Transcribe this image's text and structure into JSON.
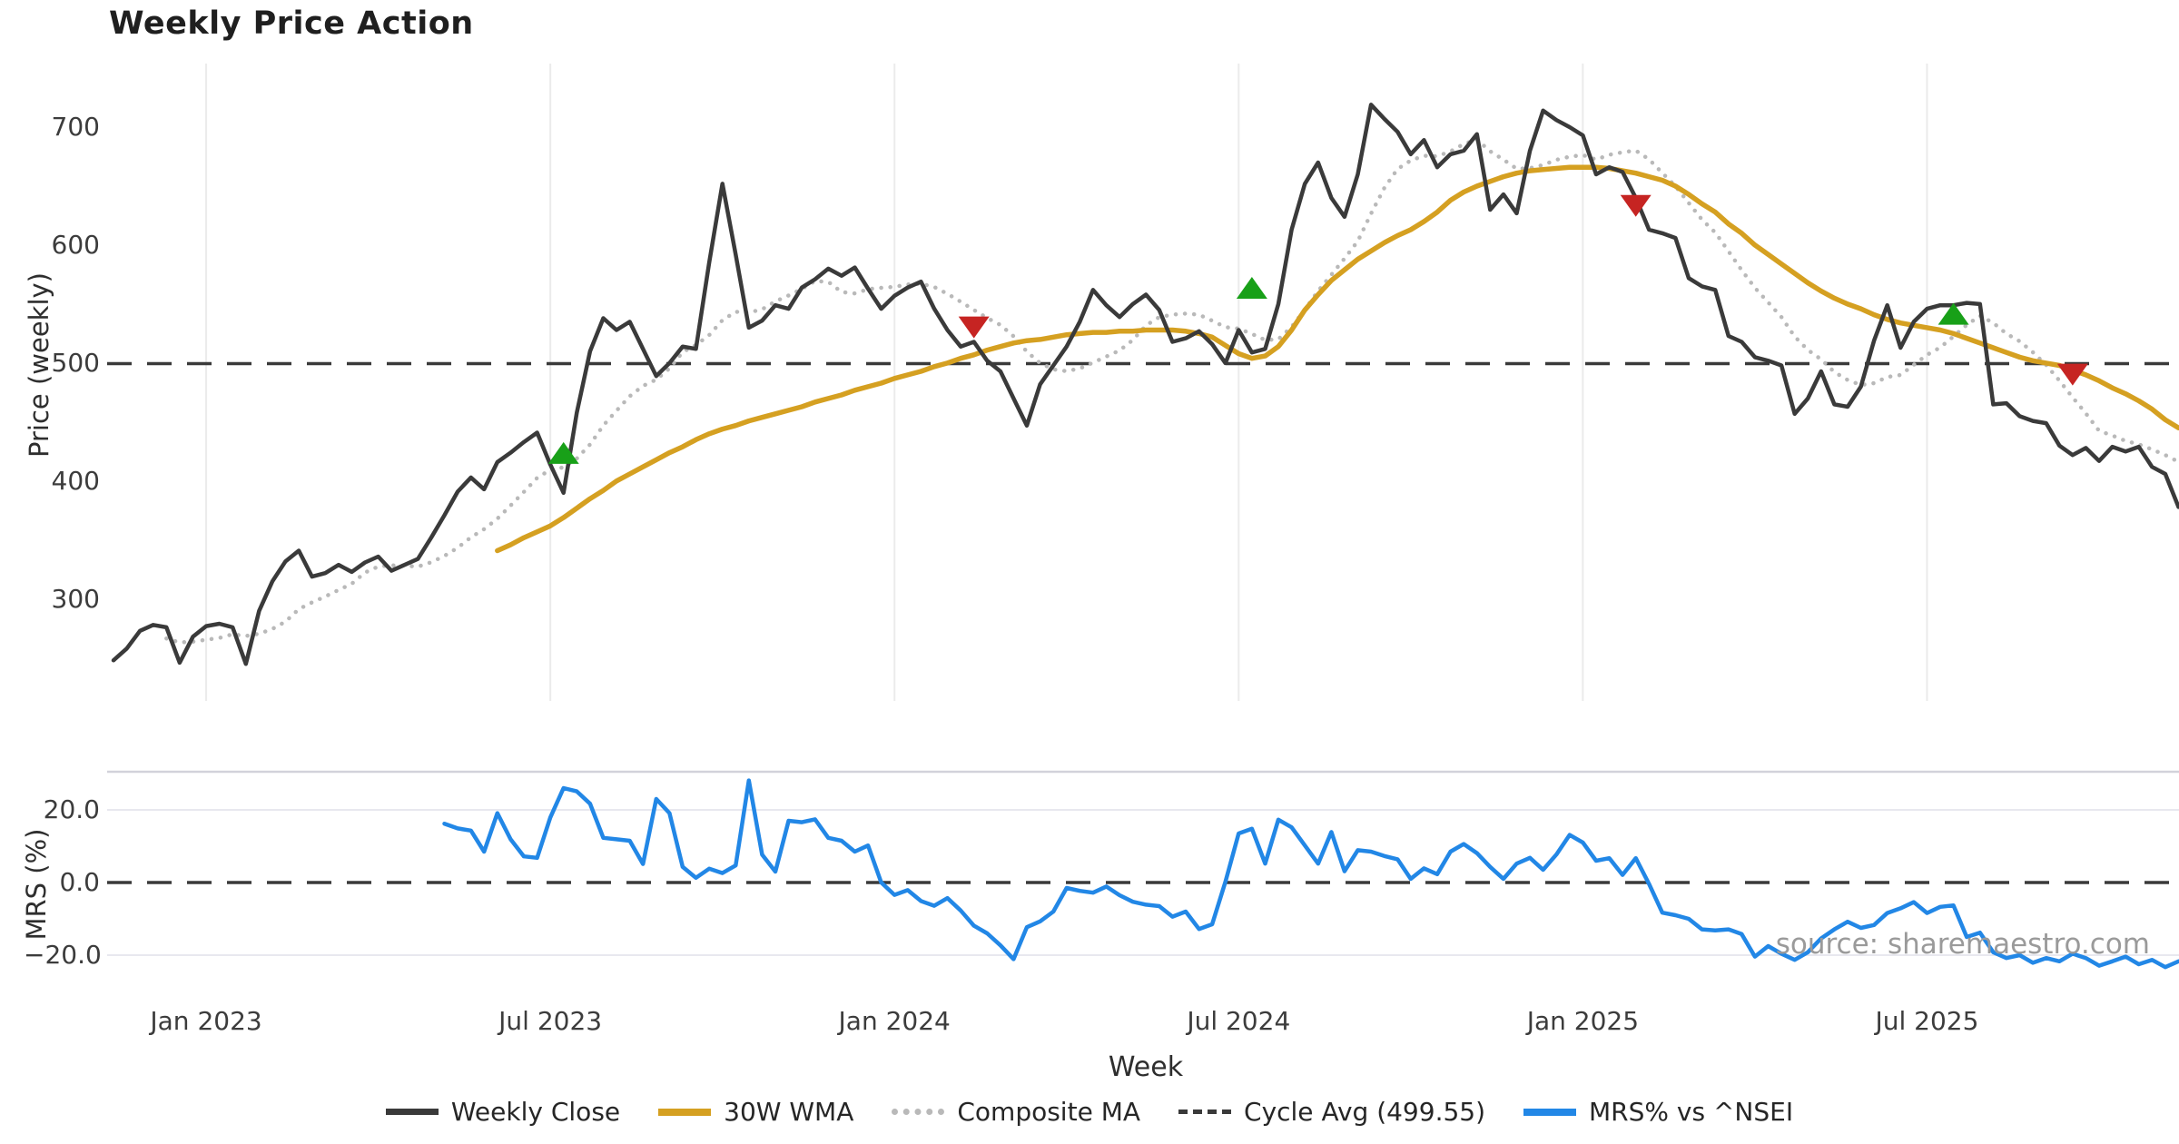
{
  "title": "Weekly Price Action",
  "xlabel": "Week",
  "watermark": "source: sharemaestro.com",
  "price_panel": {
    "ylabel": "Price (weekly)",
    "ytick_labels": [
      "700",
      "600",
      "500",
      "400",
      "300"
    ],
    "ytick_values": [
      700,
      600,
      500,
      400,
      300
    ]
  },
  "mrs_panel": {
    "ylabel": "MRS (%)",
    "ytick_labels": [
      "20.0",
      "0.0",
      "−20.0"
    ],
    "ytick_values": [
      20,
      0,
      -20
    ]
  },
  "xticks": {
    "labels": [
      "Jan 2023",
      "Jul 2023",
      "Jan 2024",
      "Jul 2024",
      "Jan 2025",
      "Jul 2025"
    ],
    "week_indices": [
      7,
      33,
      59,
      85,
      111,
      137
    ]
  },
  "legend": [
    {
      "label": "Weekly Close",
      "style": "solid",
      "color": "#3a3a3a"
    },
    {
      "label": "30W WMA",
      "style": "thick",
      "color": "#d5a021"
    },
    {
      "label": "Composite MA",
      "style": "dotted",
      "color": "#b9b9b9"
    },
    {
      "label": "Cycle Avg (499.55)",
      "style": "dashed",
      "color": "#3a3a3a"
    },
    {
      "label": "MRS% vs ^NSEI",
      "style": "thick",
      "color": "#2287e6"
    }
  ],
  "colors": {
    "close": "#3a3a3a",
    "wma": "#d5a021",
    "composite": "#b9b9b9",
    "cycle": "#3a3a3a",
    "mrs": "#2287e6",
    "buy": "#18a018",
    "sell": "#c62422",
    "grid_v": "#ebebeb",
    "grid_h": "#e8e8ef",
    "spine": "#d2d2da",
    "tick_text": "#3c3c3c"
  },
  "chart_data": {
    "type": "line",
    "x_unit": "week_index (week 0 = mid-Nov 2022, 1 px-week spacing; ticks every 26 weeks)",
    "price_ylim": [
      230,
      755
    ],
    "mrs_ylim": [
      -30,
      30
    ],
    "cycle_avg": 499.55,
    "weekly_close": {
      "start_index": 0,
      "values": [
        248,
        258,
        273,
        278,
        276,
        246,
        268,
        277,
        279,
        276,
        245,
        290,
        315,
        332,
        341,
        319,
        322,
        329,
        323,
        331,
        336,
        324,
        329,
        334,
        352,
        371,
        391,
        403,
        393,
        416,
        424,
        433,
        441,
        414,
        390,
        458,
        510,
        538,
        528,
        535,
        512,
        489,
        500,
        514,
        512,
        585,
        652,
        592,
        530,
        536,
        549,
        546,
        564,
        571,
        580,
        574,
        581,
        563,
        546,
        557,
        564,
        569,
        546,
        528,
        514,
        518,
        502,
        493,
        470,
        447,
        482,
        498,
        514,
        535,
        562,
        549,
        539,
        550,
        558,
        545,
        518,
        521,
        527,
        516,
        500,
        528,
        509,
        512,
        550,
        613,
        652,
        670,
        640,
        624,
        660,
        719,
        707,
        696,
        677,
        689,
        666,
        677,
        680,
        694,
        630,
        643,
        627,
        680,
        714,
        706,
        700,
        693,
        660,
        666,
        662,
        640,
        613,
        610,
        606,
        572,
        565,
        562,
        523,
        518,
        505,
        502,
        498,
        457,
        470,
        493,
        465,
        463,
        480,
        519,
        549,
        513,
        535,
        546,
        549,
        549,
        551,
        550,
        465,
        466,
        455,
        451,
        449,
        430,
        422,
        428,
        417,
        429,
        425,
        429,
        412,
        406,
        378
      ]
    },
    "wma_30w": {
      "start_index": 29,
      "values": [
        341,
        346,
        352,
        357,
        362,
        369,
        377,
        385,
        392,
        400,
        406,
        412,
        418,
        424,
        429,
        435,
        440,
        444,
        447,
        451,
        454,
        457,
        460,
        463,
        467,
        470,
        473,
        477,
        480,
        483,
        487,
        490,
        493,
        497,
        500,
        504,
        507,
        511,
        514,
        517,
        519,
        520,
        522,
        524,
        525,
        526,
        526,
        527,
        527,
        528,
        528,
        528,
        527,
        525,
        522,
        515,
        508,
        504,
        506,
        514,
        528,
        545,
        558,
        570,
        579,
        588,
        595,
        602,
        608,
        613,
        620,
        628,
        638,
        645,
        650,
        654,
        658,
        661,
        663,
        664,
        665,
        666,
        666,
        666,
        665,
        663,
        661,
        658,
        655,
        650,
        643,
        635,
        628,
        618,
        610,
        600,
        592,
        584,
        576,
        568,
        561,
        555,
        550,
        546,
        541,
        537,
        534,
        532,
        530,
        528,
        525,
        521,
        517,
        513,
        509,
        505,
        502,
        500,
        498,
        494,
        490,
        485,
        479,
        474,
        468,
        461,
        452,
        445
      ]
    },
    "composite_ma": {
      "derived": "trailing mean of up to 9 most recent weekly closes",
      "start_index": 4
    },
    "mrs_pct": {
      "start_index": 25,
      "values": [
        16.2,
        14.9,
        14.3,
        8.5,
        19.1,
        11.9,
        7.2,
        6.8,
        17.9,
        26.0,
        25.1,
        21.7,
        12.3,
        11.9,
        11.5,
        5.1,
        23.0,
        19.1,
        4.3,
        1.3,
        3.8,
        2.6,
        4.7,
        28.1,
        7.7,
        3.0,
        17.0,
        16.6,
        17.4,
        12.3,
        11.5,
        8.5,
        10.2,
        0.0,
        -3.4,
        -2.1,
        -5.1,
        -6.4,
        -4.3,
        -7.7,
        -11.9,
        -14.0,
        -17.3,
        -21.1,
        -12.3,
        -10.7,
        -8.0,
        -1.5,
        -2.3,
        -2.8,
        -1.1,
        -3.5,
        -5.3,
        -6.1,
        -6.5,
        -9.4,
        -8.0,
        -12.8,
        -11.5,
        0.2,
        13.5,
        14.8,
        5.2,
        17.3,
        15.2,
        10.2,
        5.2,
        13.9,
        3.1,
        8.9,
        8.5,
        7.3,
        6.4,
        1.0,
        3.9,
        2.3,
        8.5,
        10.6,
        8.1,
        4.3,
        1.0,
        5.2,
        6.8,
        3.5,
        7.7,
        13.1,
        11.0,
        6.0,
        6.7,
        2.1,
        6.7,
        -0.4,
        -8.3,
        -9.0,
        -10.0,
        -12.9,
        -13.2,
        -12.9,
        -14.2,
        -20.4,
        -17.5,
        -19.6,
        -21.3,
        -19.2,
        -15.4,
        -12.9,
        -10.8,
        -12.5,
        -11.7,
        -8.4,
        -7.1,
        -5.4,
        -8.4,
        -6.7,
        -6.3,
        -15.0,
        -13.8,
        -19.2,
        -20.8,
        -20.0,
        -22.1,
        -20.8,
        -21.7,
        -19.6,
        -20.8,
        -22.9,
        -21.7,
        -20.4,
        -22.5,
        -21.3,
        -23.3,
        -21.7
      ]
    },
    "signals": {
      "buy": [
        {
          "week": 34,
          "price": 423
        },
        {
          "week": 86,
          "price": 563
        },
        {
          "week": 139,
          "price": 541
        }
      ],
      "sell": [
        {
          "week": 65,
          "price": 531
        },
        {
          "week": 115,
          "price": 634
        },
        {
          "week": 148,
          "price": 491
        }
      ]
    }
  }
}
